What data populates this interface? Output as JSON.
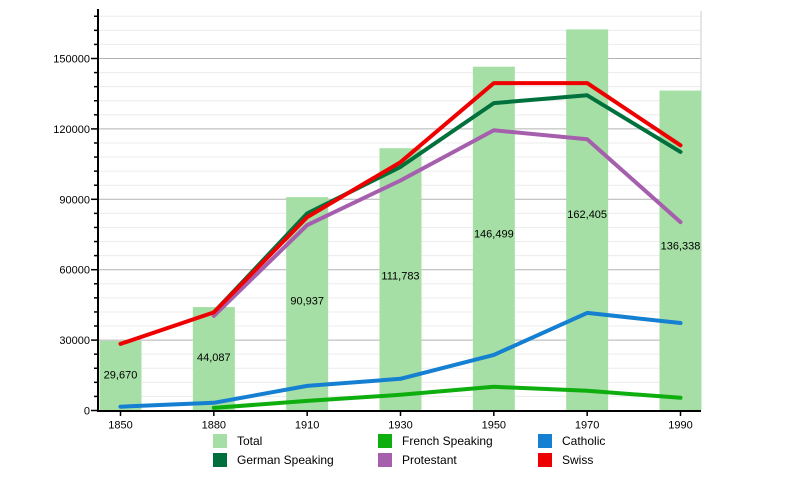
{
  "chart_data": {
    "type": "bar+line",
    "title": "",
    "xlabel": "",
    "ylabel": "",
    "x_labels": [
      "1850",
      "1880",
      "1910",
      "1930",
      "1950",
      "1970",
      "1990"
    ],
    "y_axis": {
      "tick_labels": [
        "0",
        "30000",
        "60000",
        "90000",
        "120000",
        "150000"
      ],
      "tick_values": [
        0,
        30000,
        60000,
        90000,
        120000,
        150000
      ],
      "minor_step": 6000,
      "max": 168000,
      "ylim": [
        0,
        170000
      ],
      "grid": true
    },
    "bars": {
      "name": "Total",
      "color": "#a5dfa5",
      "values": [
        29670,
        44087,
        90937,
        111783,
        146499,
        162405,
        136338
      ],
      "value_labels": [
        "29,670",
        "44,087",
        "90,937",
        "111,783",
        "146,499",
        "162,405",
        "136,338"
      ]
    },
    "lines": [
      {
        "name": "German Speaking",
        "color": "#00713c",
        "points": [
          {
            "year": "1880",
            "value": 41800
          },
          {
            "year": "1910",
            "value": 84000
          },
          {
            "year": "1930",
            "value": 103800
          },
          {
            "year": "1950",
            "value": 131000
          },
          {
            "year": "1970",
            "value": 134300
          },
          {
            "year": "1990",
            "value": 110200
          }
        ]
      },
      {
        "name": "French Speaking",
        "color": "#0dae0d",
        "points": [
          {
            "year": "1880",
            "value": 1100
          },
          {
            "year": "1910",
            "value": 4100
          },
          {
            "year": "1930",
            "value": 6700
          },
          {
            "year": "1950",
            "value": 10100
          },
          {
            "year": "1970",
            "value": 8400
          },
          {
            "year": "1990",
            "value": 5400
          }
        ]
      },
      {
        "name": "Protestant",
        "color": "#a55fad",
        "points": [
          {
            "year": "1880",
            "value": 40300
          },
          {
            "year": "1910",
            "value": 79000
          },
          {
            "year": "1930",
            "value": 98000
          },
          {
            "year": "1950",
            "value": 119400
          },
          {
            "year": "1970",
            "value": 115600
          },
          {
            "year": "1990",
            "value": 80300
          }
        ]
      },
      {
        "name": "Catholic",
        "color": "#157fd1",
        "points": [
          {
            "year": "1850",
            "value": 1600
          },
          {
            "year": "1880",
            "value": 3300
          },
          {
            "year": "1910",
            "value": 10500
          },
          {
            "year": "1930",
            "value": 13500
          },
          {
            "year": "1950",
            "value": 23700
          },
          {
            "year": "1970",
            "value": 41600
          },
          {
            "year": "1990",
            "value": 37300
          }
        ]
      },
      {
        "name": "Swiss",
        "color": "#ee0000",
        "points": [
          {
            "year": "1850",
            "value": 28400
          },
          {
            "year": "1880",
            "value": 41800
          },
          {
            "year": "1910",
            "value": 82400
          },
          {
            "year": "1930",
            "value": 105800
          },
          {
            "year": "1950",
            "value": 139500
          },
          {
            "year": "1970",
            "value": 139500
          },
          {
            "year": "1990",
            "value": 113000
          }
        ]
      }
    ],
    "legend_position": "bottom"
  },
  "legend": {
    "items": [
      {
        "label": "Total",
        "color": "#a5dfa5"
      },
      {
        "label": "German Speaking",
        "color": "#00713c"
      },
      {
        "label": "French Speaking",
        "color": "#0dae0d"
      },
      {
        "label": "Protestant",
        "color": "#a55fad"
      },
      {
        "label": "Catholic",
        "color": "#157fd1"
      },
      {
        "label": "Swiss",
        "color": "#ee0000"
      }
    ]
  },
  "colors": {
    "minor_grid": "#ececec",
    "major_grid": "#b3b3b3",
    "axis": "#000000",
    "plot_right_border": "#cccccc"
  }
}
